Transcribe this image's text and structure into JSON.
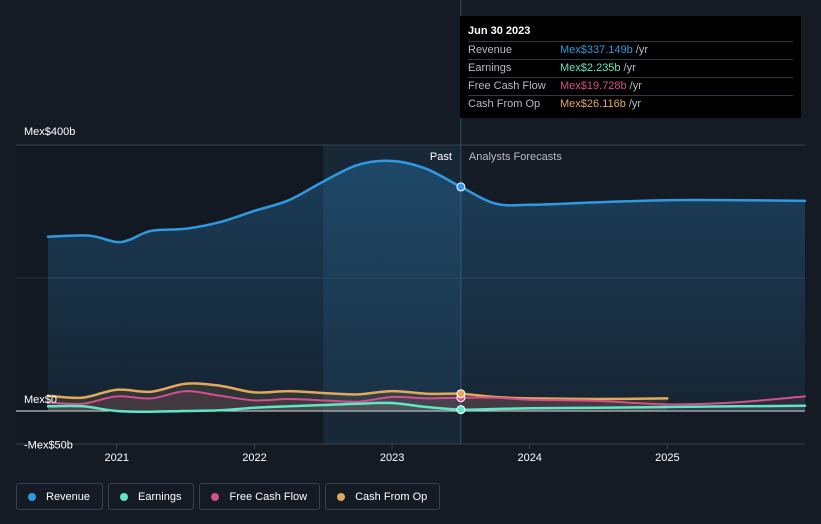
{
  "colors": {
    "revenue": "#2f9ae4",
    "earnings": "#5ee6c6",
    "free_cash_flow": "#d4508c",
    "cash_from_op": "#e3a95a",
    "background": "#151b24",
    "tooltip_bg": "#000000"
  },
  "tooltip": {
    "date": "Jun 30 2023",
    "rows": [
      {
        "label": "Revenue",
        "value": "Mex$337.149b",
        "unit": "/yr",
        "color": "#2f9ae4"
      },
      {
        "label": "Earnings",
        "value": "Mex$2.235b",
        "unit": "/yr",
        "color": "#5ee6c6"
      },
      {
        "label": "Free Cash Flow",
        "value": "Mex$19.728b",
        "unit": "/yr",
        "color": "#d4508c"
      },
      {
        "label": "Cash From Op",
        "value": "Mex$26.116b",
        "unit": "/yr",
        "color": "#e3a95a"
      }
    ]
  },
  "legend": [
    {
      "label": "Revenue",
      "color": "#2f9ae4"
    },
    {
      "label": "Earnings",
      "color": "#5ee6c6"
    },
    {
      "label": "Free Cash Flow",
      "color": "#d4508c"
    },
    {
      "label": "Cash From Op",
      "color": "#e3a95a"
    }
  ],
  "chart_data": {
    "type": "line",
    "title": "",
    "xlabel": "",
    "ylabel": "",
    "x_range": [
      2020.5,
      2026.0
    ],
    "ylim": [
      -50,
      400
    ],
    "y_tick_labels": [
      {
        "value": 400,
        "label": "Mex$400b"
      },
      {
        "value": 0,
        "label": "Mex$0"
      },
      {
        "value": -50,
        "label": "-Mex$50b"
      }
    ],
    "x_ticks": [
      {
        "value": 2021,
        "label": "2021"
      },
      {
        "value": 2022,
        "label": "2022"
      },
      {
        "value": 2023,
        "label": "2023"
      },
      {
        "value": 2024,
        "label": "2024"
      },
      {
        "value": 2025,
        "label": "2025"
      }
    ],
    "past_label": "Past",
    "forecast_label": "Analysts Forecasts",
    "past_shade_start": 2022.5,
    "divider_x": 2023.5,
    "series": [
      {
        "name": "Revenue",
        "color": "#2f9ae4",
        "width": 2.5,
        "area": true,
        "points": [
          [
            2020.5,
            262
          ],
          [
            2020.75,
            264
          ],
          [
            2020.85,
            262
          ],
          [
            2021.0,
            254
          ],
          [
            2021.1,
            258
          ],
          [
            2021.25,
            271
          ],
          [
            2021.5,
            274
          ],
          [
            2021.75,
            284
          ],
          [
            2022.0,
            301
          ],
          [
            2022.25,
            317
          ],
          [
            2022.5,
            345
          ],
          [
            2022.75,
            370
          ],
          [
            2023.0,
            376
          ],
          [
            2023.25,
            364
          ],
          [
            2023.5,
            337
          ],
          [
            2023.75,
            312
          ],
          [
            2024.0,
            310
          ],
          [
            2024.5,
            314
          ],
          [
            2025.0,
            317
          ],
          [
            2025.5,
            317
          ],
          [
            2026.0,
            316
          ]
        ],
        "highlight": {
          "x": 2023.5,
          "y": 337
        }
      },
      {
        "name": "Earnings",
        "color": "#5ee6c6",
        "width": 2.5,
        "area": false,
        "points": [
          [
            2020.5,
            7
          ],
          [
            2020.75,
            7
          ],
          [
            2021.0,
            0
          ],
          [
            2021.25,
            -1
          ],
          [
            2021.5,
            0
          ],
          [
            2021.75,
            1
          ],
          [
            2022.0,
            5
          ],
          [
            2022.25,
            7
          ],
          [
            2022.5,
            9
          ],
          [
            2022.75,
            11
          ],
          [
            2023.0,
            12
          ],
          [
            2023.25,
            6
          ],
          [
            2023.5,
            2
          ],
          [
            2023.75,
            3
          ],
          [
            2024.0,
            4
          ],
          [
            2024.5,
            5
          ],
          [
            2025.0,
            6
          ],
          [
            2025.5,
            7
          ],
          [
            2026.0,
            8
          ]
        ],
        "highlight": {
          "x": 2023.5,
          "y": 2
        }
      },
      {
        "name": "Free Cash Flow",
        "color": "#d4508c",
        "width": 2,
        "area": false,
        "points": [
          [
            2020.5,
            13
          ],
          [
            2020.75,
            11
          ],
          [
            2021.0,
            22
          ],
          [
            2021.25,
            19
          ],
          [
            2021.5,
            30
          ],
          [
            2021.75,
            23
          ],
          [
            2022.0,
            16
          ],
          [
            2022.25,
            18
          ],
          [
            2022.5,
            16
          ],
          [
            2022.75,
            14
          ],
          [
            2023.0,
            21
          ],
          [
            2023.25,
            19
          ],
          [
            2023.5,
            20
          ],
          [
            2023.75,
            20
          ],
          [
            2024.0,
            17
          ],
          [
            2024.5,
            15
          ],
          [
            2025.0,
            10
          ],
          [
            2025.5,
            13
          ],
          [
            2026.0,
            22
          ]
        ],
        "highlight": {
          "x": 2023.5,
          "y": 20
        }
      },
      {
        "name": "Cash From Op",
        "color": "#e3a95a",
        "width": 2.5,
        "area": false,
        "points": [
          [
            2020.5,
            23
          ],
          [
            2020.75,
            20
          ],
          [
            2021.0,
            32
          ],
          [
            2021.25,
            29
          ],
          [
            2021.5,
            41
          ],
          [
            2021.75,
            38
          ],
          [
            2022.0,
            28
          ],
          [
            2022.25,
            30
          ],
          [
            2022.5,
            27
          ],
          [
            2022.75,
            25
          ],
          [
            2023.0,
            30
          ],
          [
            2023.25,
            26
          ],
          [
            2023.5,
            26
          ],
          [
            2023.75,
            21
          ],
          [
            2024.0,
            19
          ],
          [
            2024.5,
            18
          ],
          [
            2025.0,
            19
          ]
        ],
        "highlight": {
          "x": 2023.5,
          "y": 26
        }
      }
    ]
  }
}
